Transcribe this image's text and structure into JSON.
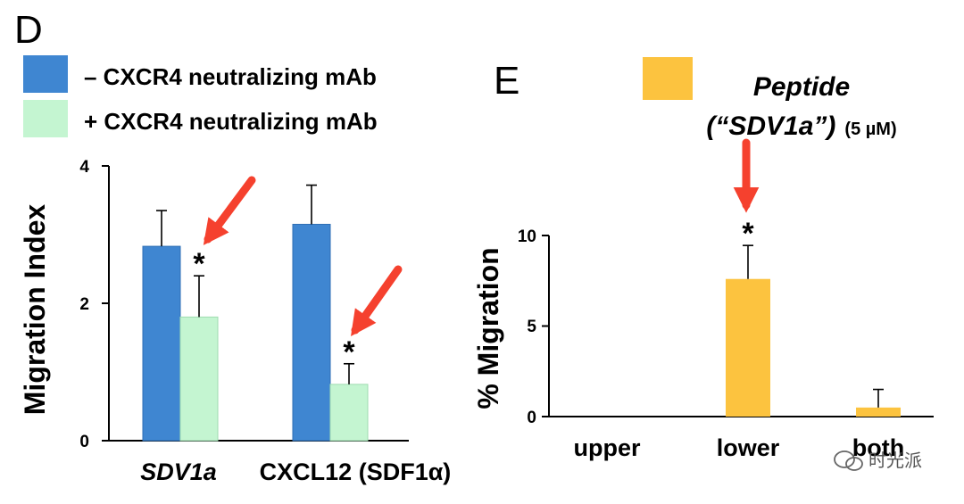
{
  "colors": {
    "blue": "#3f86d1",
    "green": "#c4f5d1",
    "gold": "#fcc33f",
    "arrow": "#f5412e",
    "axis": "#000000"
  },
  "chart_data": [
    {
      "panel": "D",
      "type": "bar",
      "title": "",
      "xlabel": "",
      "ylabel": "Migration Index",
      "ylim": [
        0,
        4
      ],
      "yticks": [
        "0",
        "2",
        "4"
      ],
      "categories": [
        "SDV1a",
        "CXCL12 (SDF1α)"
      ],
      "series": [
        {
          "name": "– CXCR4 neutralizing mAb",
          "values": [
            2.83,
            3.15
          ],
          "errors": [
            0.52,
            0.57
          ]
        },
        {
          "name": "+ CXCR4 neutralizing mAb",
          "values": [
            1.8,
            0.82
          ],
          "errors": [
            0.6,
            0.3
          ]
        }
      ],
      "annotations": [
        {
          "label": "*",
          "category": 0,
          "series": 1
        },
        {
          "label": "*",
          "category": 1,
          "series": 1
        }
      ],
      "legend_position": "top-left"
    },
    {
      "panel": "E",
      "type": "bar",
      "title": "",
      "xlabel": "",
      "ylabel": "% Migration",
      "ylim": [
        0,
        10
      ],
      "yticks": [
        "0",
        "5",
        "10"
      ],
      "categories": [
        "upper",
        "lower",
        "both"
      ],
      "series": [
        {
          "name": "Peptide (“SDV1a”)",
          "values": [
            0,
            7.6,
            0.5
          ],
          "errors": [
            0,
            1.85,
            1.0
          ]
        }
      ],
      "legend": {
        "line1": "Peptide",
        "line2": "(“SDV1a”)",
        "conc": "(5 µM)"
      },
      "annotations": [
        {
          "label": "*",
          "category": 1,
          "series": 0
        }
      ],
      "legend_position": "top-center"
    }
  ],
  "watermark": {
    "text": "时光派"
  }
}
